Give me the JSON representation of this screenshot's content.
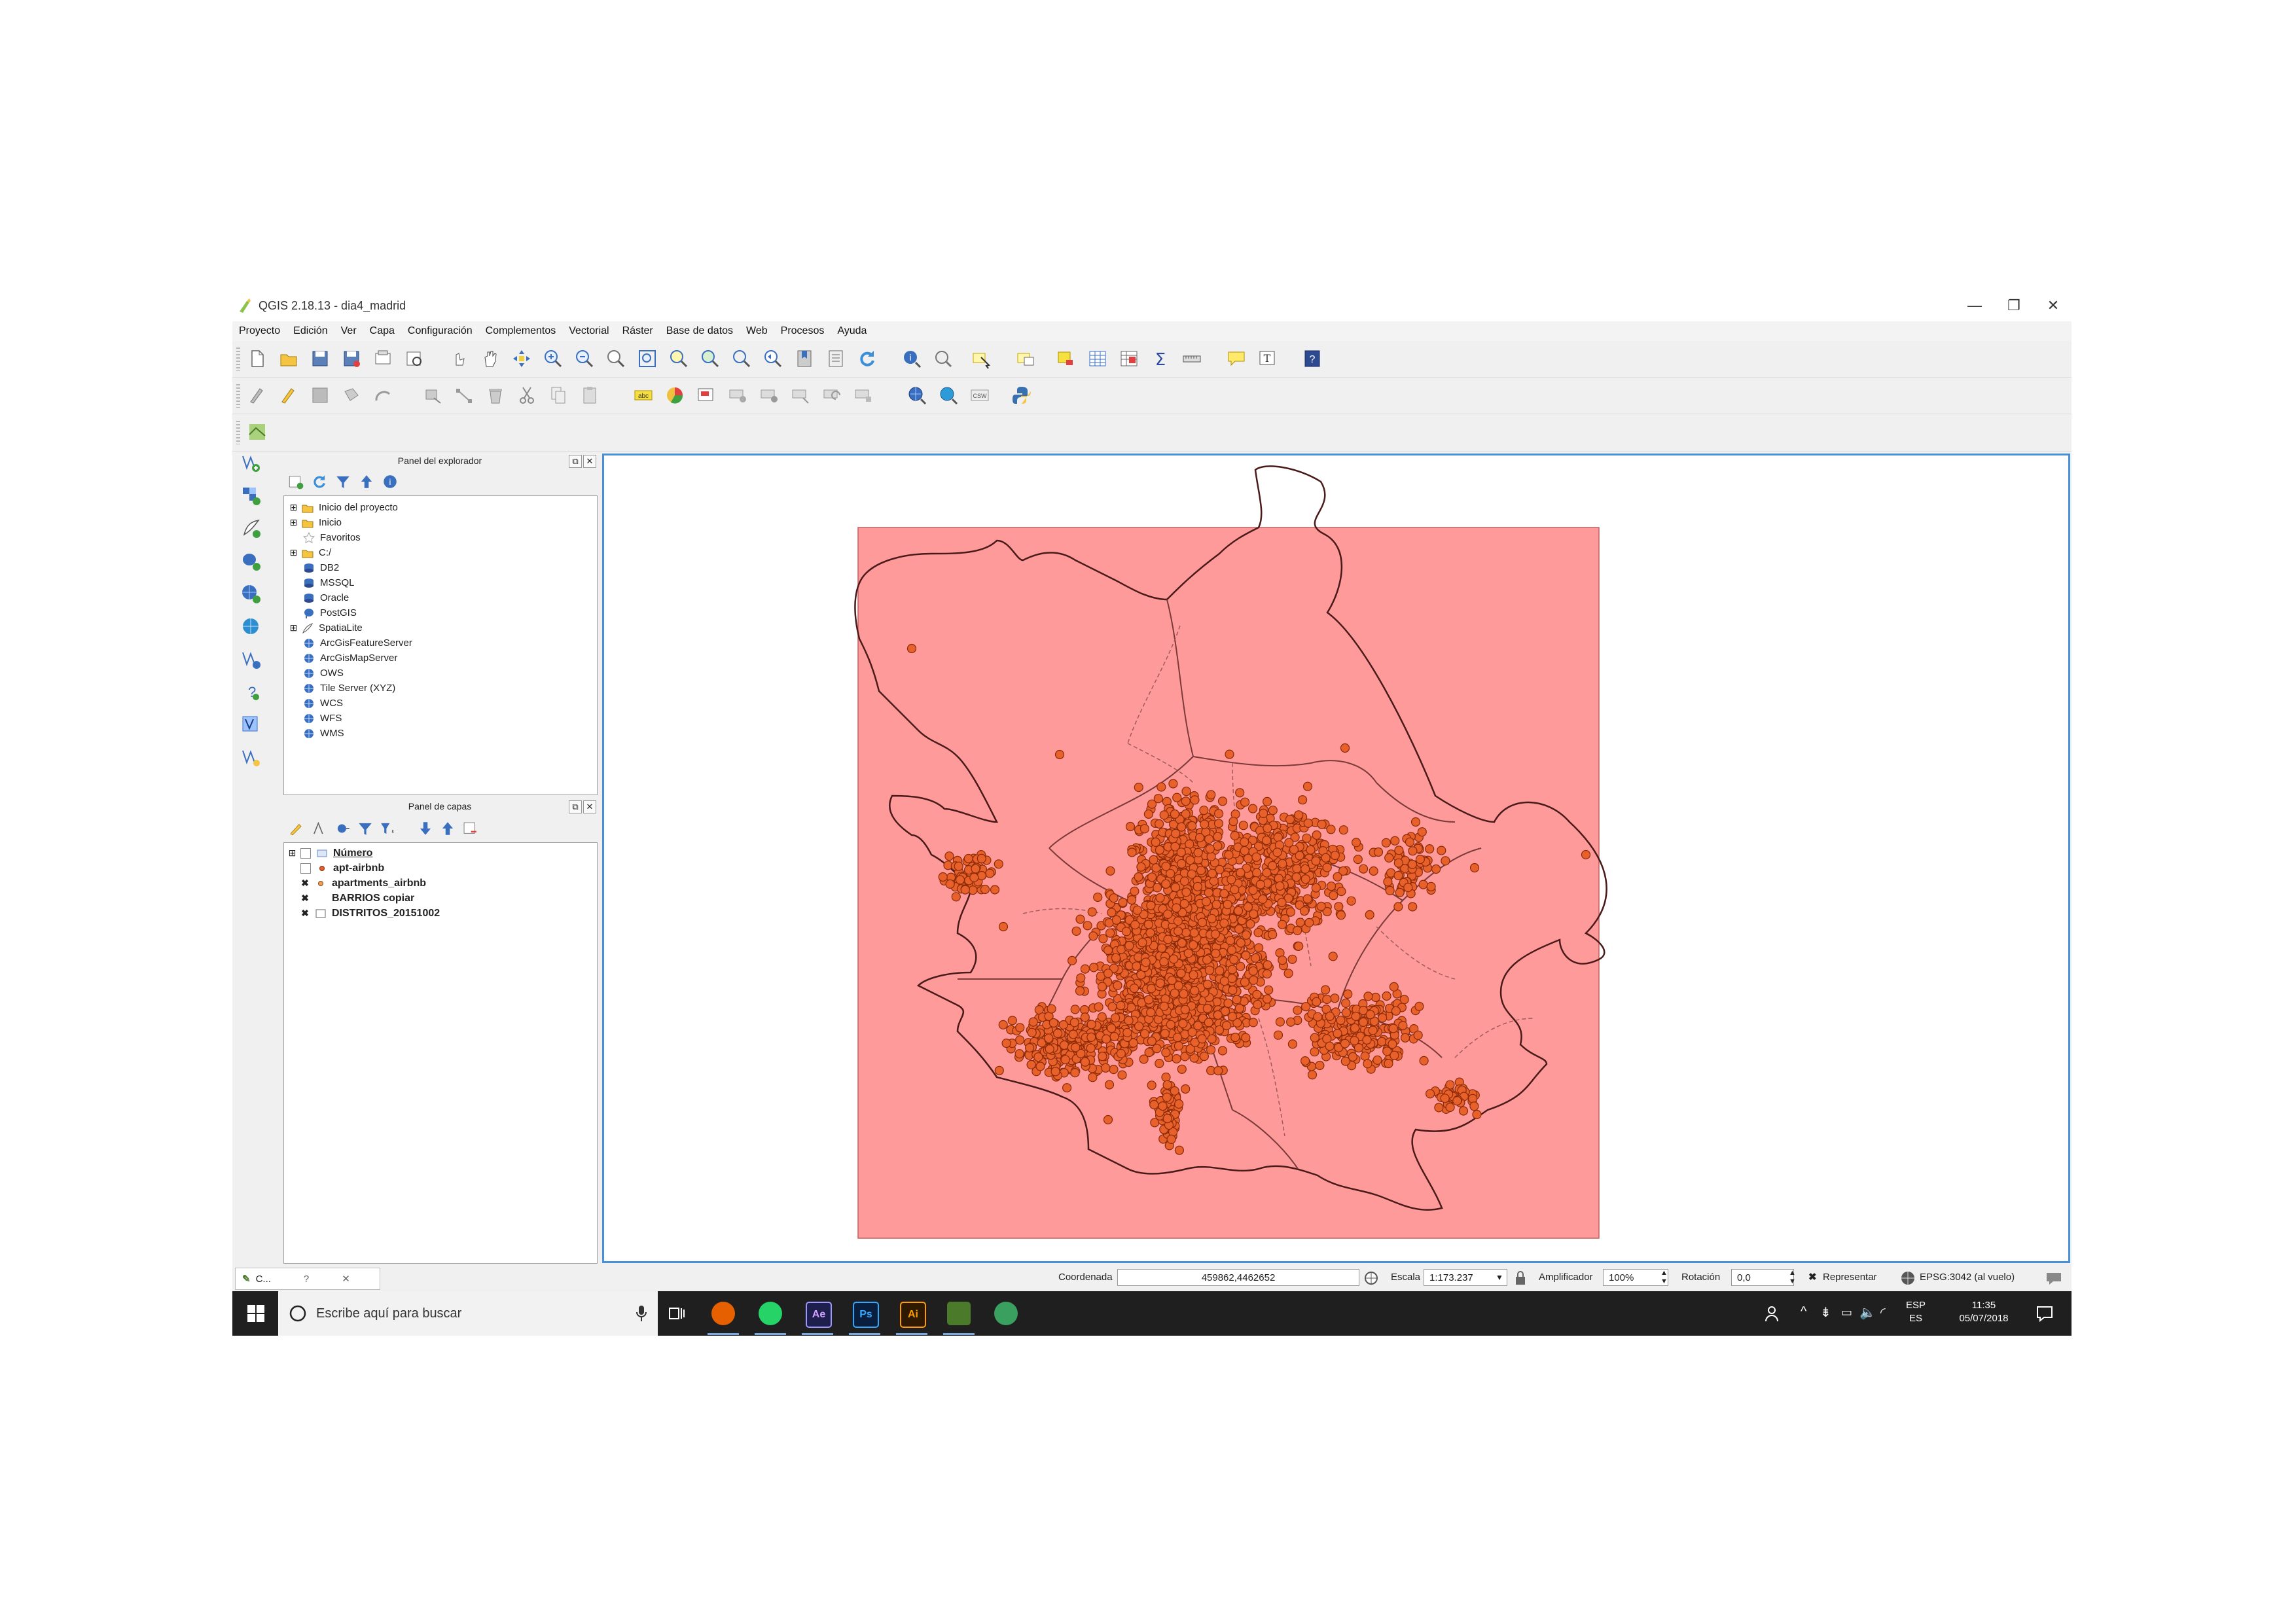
{
  "window": {
    "title": "QGIS 2.18.13 - dia4_madrid",
    "minimize_glyph": "—",
    "restore_glyph": "❐",
    "close_glyph": "✕"
  },
  "menu": [
    "Proyecto",
    "Edición",
    "Ver",
    "Capa",
    "Configuración",
    "Complementos",
    "Vectorial",
    "Ráster",
    "Base de datos",
    "Web",
    "Procesos",
    "Ayuda"
  ],
  "browser_panel": {
    "title": "Panel del explorador",
    "items": [
      {
        "label": "Inicio del proyecto",
        "icon": "folder-icon",
        "expandable": true
      },
      {
        "label": "Inicio",
        "icon": "folder-icon",
        "expandable": true
      },
      {
        "label": "Favoritos",
        "icon": "star-icon",
        "expandable": false
      },
      {
        "label": "C:/",
        "icon": "folder-icon",
        "expandable": true
      },
      {
        "label": "DB2",
        "icon": "database-icon",
        "expandable": false
      },
      {
        "label": "MSSQL",
        "icon": "database-icon",
        "expandable": false
      },
      {
        "label": "Oracle",
        "icon": "database-icon",
        "expandable": false
      },
      {
        "label": "PostGIS",
        "icon": "elephant-icon",
        "expandable": false
      },
      {
        "label": "SpatiaLite",
        "icon": "feather-icon",
        "expandable": true
      },
      {
        "label": "ArcGisFeatureServer",
        "icon": "globe-icon",
        "expandable": false
      },
      {
        "label": "ArcGisMapServer",
        "icon": "globe-icon",
        "expandable": false
      },
      {
        "label": "OWS",
        "icon": "globe-icon",
        "expandable": false
      },
      {
        "label": "Tile Server (XYZ)",
        "icon": "globe-icon",
        "expandable": false
      },
      {
        "label": "WCS",
        "icon": "globe-icon",
        "expandable": false
      },
      {
        "label": "WFS",
        "icon": "globe-icon",
        "expandable": false
      },
      {
        "label": "WMS",
        "icon": "globe-icon",
        "expandable": false
      }
    ]
  },
  "layers_panel": {
    "title": "Panel de capas",
    "layers": [
      {
        "label": "Número",
        "checked": false,
        "underline": true,
        "expandable": true
      },
      {
        "label": "apt-airbnb",
        "checked": false,
        "underline": false,
        "expandable": false
      },
      {
        "label": "apartments_airbnb",
        "checked": true,
        "underline": false,
        "expandable": false
      },
      {
        "label": "BARRIOS copiar",
        "checked": true,
        "underline": false,
        "expandable": false
      },
      {
        "label": "DISTRITOS_20151002",
        "checked": true,
        "underline": false,
        "expandable": false
      }
    ]
  },
  "statusbar": {
    "coord_label": "Coordenada",
    "coord_value": "459862,4462652",
    "scale_label": "Escala",
    "scale_value": "1:173.237",
    "magnifier_label": "Amplificador",
    "magnifier_value": "100%",
    "rotation_label": "Rotación",
    "rotation_value": "0,0",
    "render_label": "Representar",
    "crs_label": "EPSG:3042 (al vuelo)"
  },
  "bottom_tab": {
    "label": "C...",
    "help": "?",
    "close": "✕"
  },
  "taskbar": {
    "search_placeholder": "Escribe aquí para buscar",
    "lang_top": "ESP",
    "lang_bottom": "ES",
    "time": "11:35",
    "date": "05/07/2018",
    "apps": [
      {
        "name": "firefox-icon",
        "label": "",
        "color": "#e66000"
      },
      {
        "name": "whatsapp-icon",
        "label": "",
        "color": "#25d366"
      },
      {
        "name": "after-effects-icon",
        "label": "Ae",
        "color": "#1f1f4d"
      },
      {
        "name": "photoshop-icon",
        "label": "Ps",
        "color": "#0a1f3d"
      },
      {
        "name": "illustrator-icon",
        "label": "Ai",
        "color": "#2e1a00"
      },
      {
        "name": "qgis-icon",
        "label": "",
        "color": "#4a7a2a"
      },
      {
        "name": "globe-app-icon",
        "label": "",
        "color": "#3aa060"
      }
    ]
  },
  "colors": {
    "extent_fill": "#ff9a9a",
    "point_fill": "#e8602a",
    "point_stroke": "#8a2a08",
    "canvas_border": "#4a90d9"
  }
}
